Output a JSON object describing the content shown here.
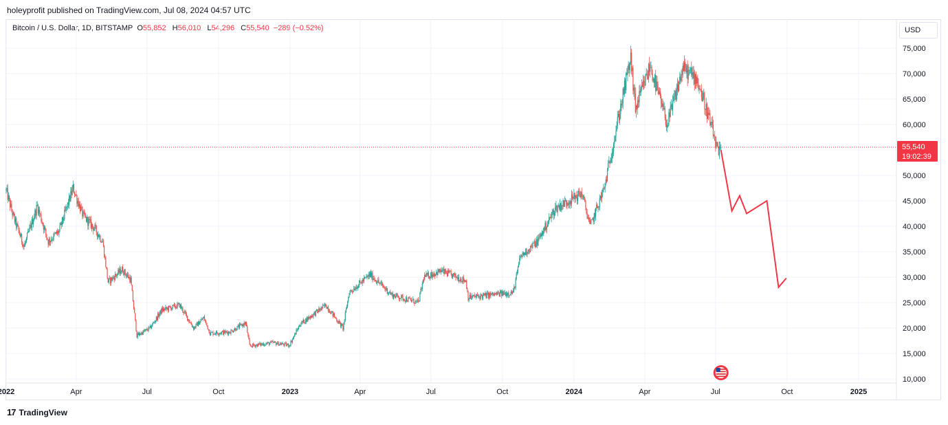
{
  "publisher": "holeyprofit published on TradingView.com, Jul 08, 2024 04:57 UTC",
  "legend": {
    "title": "Bitcoin / U.S. Dollar, 1D, BITSTAMP",
    "open_label": "O",
    "open": "55,852",
    "high_label": "H",
    "high": "56,010",
    "low_label": "L",
    "low": "54,296",
    "close_label": "C",
    "close": "55,540",
    "change": "−289 (−0.52%)"
  },
  "currency": "USD",
  "last_price": {
    "price": "55,540",
    "countdown": "19:02:39"
  },
  "footer": {
    "brand": "TradingView",
    "logo": "tv-logo-icon"
  },
  "colors": {
    "up": "#26a69a",
    "down": "#ef5350",
    "projection": "#f23645",
    "last_line": "#f23645"
  },
  "chart_data": {
    "type": "candlestick",
    "symbol": "Bitcoin / U.S. Dollar",
    "interval": "1D",
    "exchange": "BITSTAMP",
    "y_ticks": [
      "10,000",
      "15,000",
      "20,000",
      "25,000",
      "30,000",
      "35,000",
      "40,000",
      "45,000",
      "50,000",
      "55,000",
      "60,000",
      "65,000",
      "70,000",
      "75,000"
    ],
    "ylim": [
      10000,
      77000
    ],
    "x_ticks": [
      "2022",
      "Apr",
      "Jul",
      "Oct",
      "2023",
      "Apr",
      "Jul",
      "Oct",
      "2024",
      "Apr",
      "Jul",
      "Oct",
      "2025"
    ],
    "x_tick_dates": [
      "2022-01-01",
      "2022-04-01",
      "2022-07-01",
      "2022-10-01",
      "2023-01-01",
      "2023-04-01",
      "2023-07-01",
      "2023-10-01",
      "2024-01-01",
      "2024-04-01",
      "2024-07-01",
      "2024-10-01",
      "2025-01-01"
    ],
    "x_bold_ticks": [
      "2022",
      "2023",
      "2024",
      "2025"
    ],
    "xlim": [
      "2022-01-01",
      "2025-01-20"
    ],
    "price_path": [
      [
        "2022-01-01",
        47000
      ],
      [
        "2022-01-10",
        42000
      ],
      [
        "2022-01-24",
        36000
      ],
      [
        "2022-02-10",
        44000
      ],
      [
        "2022-02-24",
        37000
      ],
      [
        "2022-03-10",
        39000
      ],
      [
        "2022-03-28",
        47500
      ],
      [
        "2022-04-10",
        42000
      ],
      [
        "2022-04-25",
        39500
      ],
      [
        "2022-05-05",
        37000
      ],
      [
        "2022-05-12",
        29000
      ],
      [
        "2022-05-30",
        31500
      ],
      [
        "2022-06-10",
        29500
      ],
      [
        "2022-06-18",
        18500
      ],
      [
        "2022-07-05",
        20000
      ],
      [
        "2022-07-20",
        23500
      ],
      [
        "2022-08-12",
        24500
      ],
      [
        "2022-08-30",
        20000
      ],
      [
        "2022-09-12",
        22000
      ],
      [
        "2022-09-20",
        19000
      ],
      [
        "2022-10-15",
        19200
      ],
      [
        "2022-11-05",
        21000
      ],
      [
        "2022-11-10",
        16500
      ],
      [
        "2022-12-10",
        17100
      ],
      [
        "2022-12-31",
        16600
      ],
      [
        "2023-01-14",
        20800
      ],
      [
        "2023-02-16",
        24500
      ],
      [
        "2023-03-10",
        20000
      ],
      [
        "2023-03-18",
        27000
      ],
      [
        "2023-04-14",
        30500
      ],
      [
        "2023-05-12",
        26500
      ],
      [
        "2023-06-15",
        25000
      ],
      [
        "2023-06-22",
        30000
      ],
      [
        "2023-07-14",
        31200
      ],
      [
        "2023-08-15",
        29300
      ],
      [
        "2023-08-18",
        26000
      ],
      [
        "2023-09-15",
        26500
      ],
      [
        "2023-10-15",
        27000
      ],
      [
        "2023-10-24",
        34000
      ],
      [
        "2023-11-15",
        37000
      ],
      [
        "2023-12-08",
        43500
      ],
      [
        "2024-01-11",
        46500
      ],
      [
        "2024-01-22",
        40000
      ],
      [
        "2024-02-09",
        47500
      ],
      [
        "2024-02-28",
        62000
      ],
      [
        "2024-03-14",
        73000
      ],
      [
        "2024-03-20",
        63000
      ],
      [
        "2024-04-08",
        71500
      ],
      [
        "2024-04-30",
        60000
      ],
      [
        "2024-05-20",
        71000
      ],
      [
        "2024-06-07",
        69000
      ],
      [
        "2024-06-24",
        60500
      ],
      [
        "2024-07-05",
        54000
      ],
      [
        "2024-07-08",
        55540
      ]
    ],
    "projection": [
      [
        "2024-07-08",
        55000
      ],
      [
        "2024-07-22",
        43000
      ],
      [
        "2024-08-01",
        46000
      ],
      [
        "2024-08-10",
        42500
      ],
      [
        "2024-09-05",
        45000
      ],
      [
        "2024-09-20",
        28000
      ],
      [
        "2024-09-30",
        29800
      ]
    ],
    "last_price": 55540
  }
}
